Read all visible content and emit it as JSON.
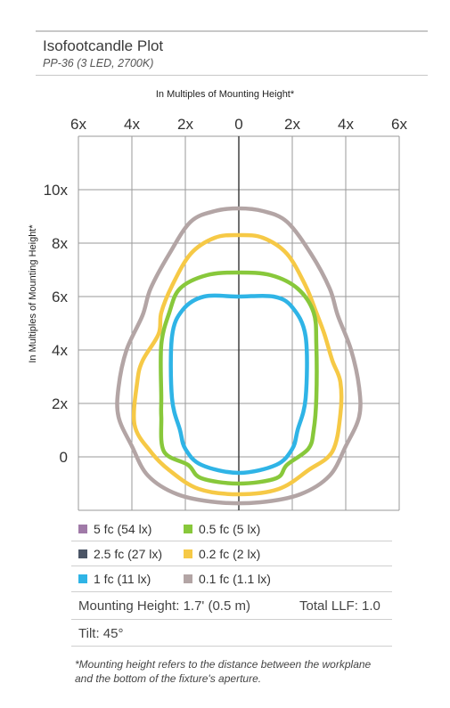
{
  "header": {
    "title": "Isofootcandle Plot",
    "subtitle": "PP-36 (3 LED, 2700K)"
  },
  "chart_data": {
    "type": "line",
    "xlabel": "In Multiples of Mounting Height*",
    "ylabel": "In Multiples of Mounting Height*",
    "xlim": [
      -6,
      6
    ],
    "ylim": [
      -2,
      12
    ],
    "x_ticks": [
      {
        "value": -6,
        "label": "6x"
      },
      {
        "value": -4,
        "label": "4x"
      },
      {
        "value": -2,
        "label": "2x"
      },
      {
        "value": 0,
        "label": "0"
      },
      {
        "value": 2,
        "label": "2x"
      },
      {
        "value": 4,
        "label": "4x"
      },
      {
        "value": 6,
        "label": "6x"
      }
    ],
    "y_ticks": [
      {
        "value": 0,
        "label": "0"
      },
      {
        "value": 2,
        "label": "2x"
      },
      {
        "value": 4,
        "label": "4x"
      },
      {
        "value": 6,
        "label": "6x"
      },
      {
        "value": 8,
        "label": "8x"
      },
      {
        "value": 10,
        "label": "10x"
      }
    ],
    "grid": true,
    "series": [
      {
        "name": "0.1 fc (1.1 lx)",
        "color": "#b3a5a5",
        "points": [
          [
            0.0,
            9.3
          ],
          [
            0.9,
            9.2
          ],
          [
            1.8,
            8.8
          ],
          [
            2.7,
            7.6
          ],
          [
            3.4,
            6.3
          ],
          [
            3.7,
            5.3
          ],
          [
            4.2,
            4.0
          ],
          [
            4.5,
            2.6
          ],
          [
            4.5,
            1.5
          ],
          [
            4.0,
            0.4
          ],
          [
            3.4,
            -0.7
          ],
          [
            2.3,
            -1.4
          ],
          [
            0.8,
            -1.7
          ],
          [
            -0.8,
            -1.7
          ],
          [
            -2.3,
            -1.4
          ],
          [
            -3.4,
            -0.7
          ],
          [
            -4.0,
            0.4
          ],
          [
            -4.5,
            1.5
          ],
          [
            -4.5,
            2.6
          ],
          [
            -4.2,
            4.0
          ],
          [
            -3.6,
            5.3
          ],
          [
            -3.3,
            6.3
          ],
          [
            -2.6,
            7.6
          ],
          [
            -1.8,
            8.8
          ],
          [
            -0.9,
            9.2
          ]
        ]
      },
      {
        "name": "0.2 fc (2 lx)",
        "color": "#f6c946",
        "points": [
          [
            0.0,
            8.3
          ],
          [
            0.9,
            8.2
          ],
          [
            1.8,
            7.6
          ],
          [
            2.5,
            6.4
          ],
          [
            2.9,
            5.4
          ],
          [
            3.2,
            4.6
          ],
          [
            3.5,
            3.6
          ],
          [
            3.8,
            2.8
          ],
          [
            3.8,
            1.6
          ],
          [
            3.5,
            0.2
          ],
          [
            2.6,
            -0.5
          ],
          [
            1.5,
            -1.2
          ],
          [
            0.0,
            -1.4
          ],
          [
            -1.5,
            -1.2
          ],
          [
            -2.6,
            -0.5
          ],
          [
            -3.3,
            0.2
          ],
          [
            -3.9,
            1.2
          ],
          [
            -3.8,
            2.8
          ],
          [
            -3.6,
            3.6
          ],
          [
            -3.0,
            4.6
          ],
          [
            -2.9,
            5.4
          ],
          [
            -2.5,
            6.4
          ],
          [
            -1.8,
            7.6
          ],
          [
            -0.9,
            8.2
          ]
        ]
      },
      {
        "name": "0.5 fc (5 lx)",
        "color": "#88c83b",
        "points": [
          [
            0.0,
            6.9
          ],
          [
            1.2,
            6.8
          ],
          [
            2.2,
            6.3
          ],
          [
            2.8,
            5.4
          ],
          [
            2.9,
            4.2
          ],
          [
            2.9,
            2.2
          ],
          [
            2.8,
            1.0
          ],
          [
            2.6,
            0.3
          ],
          [
            1.8,
            -0.3
          ],
          [
            1.4,
            -0.8
          ],
          [
            0.0,
            -1.0
          ],
          [
            -1.4,
            -0.8
          ],
          [
            -1.9,
            -0.3
          ],
          [
            -2.8,
            0.2
          ],
          [
            -2.9,
            1.5
          ],
          [
            -2.9,
            2.2
          ],
          [
            -2.9,
            4.2
          ],
          [
            -2.6,
            5.4
          ],
          [
            -2.2,
            6.3
          ],
          [
            -1.2,
            6.8
          ]
        ]
      },
      {
        "name": "1 fc (11 lx)",
        "color": "#2fb4e6",
        "points": [
          [
            0.0,
            6.0
          ],
          [
            1.3,
            6.0
          ],
          [
            2.0,
            5.6
          ],
          [
            2.5,
            4.5
          ],
          [
            2.5,
            2.2
          ],
          [
            2.2,
            1.0
          ],
          [
            2.0,
            0.3
          ],
          [
            1.4,
            -0.3
          ],
          [
            0.0,
            -0.6
          ],
          [
            -1.4,
            -0.3
          ],
          [
            -2.0,
            0.3
          ],
          [
            -2.2,
            1.0
          ],
          [
            -2.5,
            2.2
          ],
          [
            -2.5,
            4.5
          ],
          [
            -2.1,
            5.5
          ],
          [
            -1.3,
            6.0
          ]
        ]
      }
    ],
    "legend": {
      "columns": 2,
      "entries": [
        {
          "label": "5 fc (54 lx)",
          "color": "#a07aa8"
        },
        {
          "label": "0.5 fc (5 lx)",
          "color": "#88c83b"
        },
        {
          "label": "2.5 fc (27 lx)",
          "color": "#4b5566"
        },
        {
          "label": "0.2 fc (2 lx)",
          "color": "#f6c946"
        },
        {
          "label": "1 fc (11 lx)",
          "color": "#2fb4e6"
        },
        {
          "label": "0.1 fc (1.1 lx)",
          "color": "#b3a5a5"
        }
      ]
    }
  },
  "info": {
    "mounting": "Mounting Height: 1.7' (0.5 m)",
    "llf": "Total LLF: 1.0",
    "tilt": "Tilt: 45°"
  },
  "footnote": "*Mounting height refers to the distance between the workplane and the bottom of the fixture's aperture."
}
